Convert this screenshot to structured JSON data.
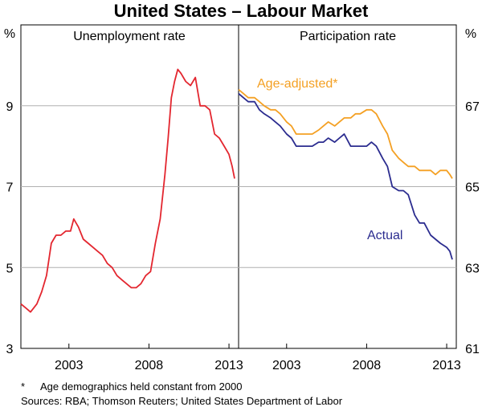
{
  "chart_data": {
    "type": "line",
    "title": "United States – Labour Market",
    "y_unit_left": "%",
    "y_unit_right": "%",
    "panels": [
      {
        "title": "Unemployment rate",
        "x_ticks": [
          "2003",
          "2008",
          "2013"
        ],
        "y_axis": {
          "side": "left",
          "ylim": [
            3,
            11
          ],
          "ticks": [
            3,
            5,
            7,
            9
          ],
          "labels": [
            "3",
            "5",
            "7",
            "9"
          ]
        },
        "series": [
          {
            "name": "Unemployment rate",
            "color": "#e3262f",
            "x": [
              2000.0,
              2000.3,
              2000.6,
              2001.0,
              2001.3,
              2001.6,
              2001.9,
              2002.2,
              2002.5,
              2002.8,
              2003.1,
              2003.3,
              2003.6,
              2003.9,
              2004.2,
              2004.5,
              2004.8,
              2005.1,
              2005.4,
              2005.7,
              2006.0,
              2006.3,
              2006.6,
              2006.9,
              2007.2,
              2007.5,
              2007.8,
              2008.1,
              2008.4,
              2008.7,
              2009.0,
              2009.2,
              2009.4,
              2009.6,
              2009.8,
              2010.0,
              2010.3,
              2010.6,
              2010.9,
              2011.2,
              2011.5,
              2011.8,
              2012.1,
              2012.4,
              2012.7,
              2013.0,
              2013.2,
              2013.35
            ],
            "values": [
              4.1,
              4.0,
              3.9,
              4.1,
              4.4,
              4.8,
              5.6,
              5.8,
              5.8,
              5.9,
              5.9,
              6.2,
              6.0,
              5.7,
              5.6,
              5.5,
              5.4,
              5.3,
              5.1,
              5.0,
              4.8,
              4.7,
              4.6,
              4.5,
              4.5,
              4.6,
              4.8,
              4.9,
              5.6,
              6.2,
              7.3,
              8.2,
              9.2,
              9.6,
              9.9,
              9.8,
              9.6,
              9.5,
              9.7,
              9.0,
              9.0,
              8.9,
              8.3,
              8.2,
              8.0,
              7.8,
              7.5,
              7.2
            ]
          }
        ]
      },
      {
        "title": "Participation rate",
        "x_ticks": [
          "2003",
          "2008",
          "2013"
        ],
        "y_axis": {
          "side": "right",
          "ylim": [
            61,
            69
          ],
          "ticks": [
            61,
            63,
            65,
            67
          ],
          "labels": [
            "61",
            "63",
            "65",
            "67"
          ]
        },
        "series": [
          {
            "name": "Actual",
            "color": "#2b2c8f",
            "x": [
              2000.0,
              2000.3,
              2000.6,
              2001.0,
              2001.3,
              2001.6,
              2002.0,
              2002.3,
              2002.6,
              2003.0,
              2003.3,
              2003.6,
              2004.0,
              2004.3,
              2004.6,
              2005.0,
              2005.3,
              2005.6,
              2006.0,
              2006.3,
              2006.6,
              2007.0,
              2007.3,
              2007.6,
              2008.0,
              2008.3,
              2008.6,
              2009.0,
              2009.3,
              2009.6,
              2010.0,
              2010.3,
              2010.6,
              2011.0,
              2011.3,
              2011.6,
              2012.0,
              2012.3,
              2012.6,
              2013.0,
              2013.2,
              2013.35
            ],
            "values": [
              67.3,
              67.2,
              67.1,
              67.1,
              66.9,
              66.8,
              66.7,
              66.6,
              66.5,
              66.3,
              66.2,
              66.0,
              66.0,
              66.0,
              66.0,
              66.1,
              66.1,
              66.2,
              66.1,
              66.2,
              66.3,
              66.0,
              66.0,
              66.0,
              66.0,
              66.1,
              66.0,
              65.7,
              65.5,
              65.0,
              64.9,
              64.9,
              64.8,
              64.3,
              64.1,
              64.1,
              63.8,
              63.7,
              63.6,
              63.5,
              63.4,
              63.2
            ]
          },
          {
            "name": "Age-adjusted*",
            "color": "#f4a023",
            "x": [
              2000.0,
              2000.3,
              2000.6,
              2001.0,
              2001.3,
              2001.6,
              2002.0,
              2002.3,
              2002.6,
              2003.0,
              2003.3,
              2003.6,
              2004.0,
              2004.3,
              2004.6,
              2005.0,
              2005.3,
              2005.6,
              2006.0,
              2006.3,
              2006.6,
              2007.0,
              2007.3,
              2007.6,
              2008.0,
              2008.3,
              2008.6,
              2009.0,
              2009.3,
              2009.6,
              2010.0,
              2010.3,
              2010.6,
              2011.0,
              2011.3,
              2011.6,
              2012.0,
              2012.3,
              2012.6,
              2013.0,
              2013.2,
              2013.35
            ],
            "values": [
              67.4,
              67.3,
              67.2,
              67.2,
              67.1,
              67.0,
              66.9,
              66.9,
              66.8,
              66.6,
              66.5,
              66.3,
              66.3,
              66.3,
              66.3,
              66.4,
              66.5,
              66.6,
              66.5,
              66.6,
              66.7,
              66.7,
              66.8,
              66.8,
              66.9,
              66.9,
              66.8,
              66.5,
              66.3,
              65.9,
              65.7,
              65.6,
              65.5,
              65.5,
              65.4,
              65.4,
              65.4,
              65.3,
              65.4,
              65.4,
              65.3,
              65.2
            ]
          }
        ]
      }
    ],
    "annotations": [
      "Age-adjusted*",
      "Actual"
    ],
    "footnote": "Age demographics held constant from 2000",
    "footnote_marker": "*",
    "sources": "Sources: RBA; Thomson Reuters; United States Department of Labor"
  }
}
